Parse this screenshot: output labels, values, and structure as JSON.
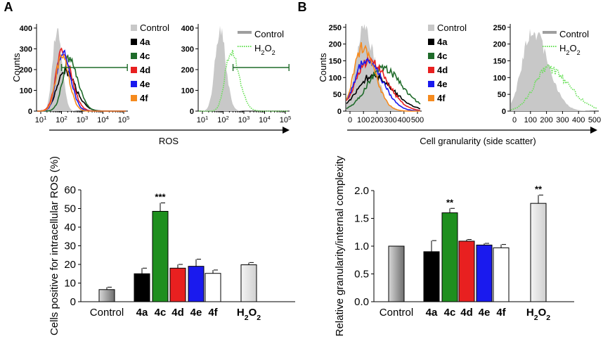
{
  "panels": [
    {
      "label": "A"
    },
    {
      "label": "B"
    }
  ],
  "colors": {
    "control_fill": "#c8c8c8",
    "control_line": "#9e9e9e",
    "4a": "#000000",
    "4c": "#1f6b2a",
    "4d": "#e82020",
    "4e": "#1a1aee",
    "4f": "#f58a1e",
    "h2o2": "#66e055",
    "bar_4c": "#1e8f1e",
    "gate": "#1f6b2a"
  },
  "chart_data": [
    {
      "type": "histogram",
      "panel": "A",
      "plot": "ros-histogram-compounds",
      "ylabel": "Counts",
      "xlabel": "ROS",
      "x_scale": "log",
      "x_ticks": [
        "10¹",
        "10²",
        "10³",
        "10⁴",
        "10⁵"
      ],
      "y_ticks": [
        0,
        100,
        200,
        300,
        400
      ],
      "ylim": [
        0,
        420
      ],
      "legend": [
        {
          "label": "Control",
          "color": "#c8c8c8"
        },
        {
          "label": "4a",
          "color": "#000000"
        },
        {
          "label": "4c",
          "color": "#1f6b2a"
        },
        {
          "label": "4d",
          "color": "#e82020"
        },
        {
          "label": "4e",
          "color": "#1a1aee"
        },
        {
          "label": "4f",
          "color": "#f58a1e"
        }
      ],
      "series": [
        {
          "name": "Control",
          "peak_x": 60,
          "peak_count": 400
        },
        {
          "name": "4a",
          "peak_x": 130,
          "peak_count": 195
        },
        {
          "name": "4c",
          "peak_x": 230,
          "peak_count": 255
        },
        {
          "name": "4d",
          "peak_x": 110,
          "peak_count": 290
        },
        {
          "name": "4e",
          "peak_x": 110,
          "peak_count": 290
        },
        {
          "name": "4f",
          "peak_x": 100,
          "peak_count": 270
        }
      ],
      "gate": {
        "from": 100,
        "to": 150000,
        "count": 210
      }
    },
    {
      "type": "histogram",
      "panel": "A",
      "plot": "ros-histogram-h2o2",
      "x_scale": "log",
      "x_ticks": [
        "10¹",
        "10²",
        "10³",
        "10⁴",
        "10⁵"
      ],
      "y_ticks": [
        0,
        100,
        200,
        300,
        400
      ],
      "ylim": [
        0,
        420
      ],
      "legend": [
        {
          "label": "Control",
          "color": "#9e9e9e"
        },
        {
          "label": "H₂O₂",
          "color": "#66e055"
        }
      ],
      "series": [
        {
          "name": "Control",
          "peak_x": 70,
          "peak_count": 390
        },
        {
          "name": "H₂O₂",
          "peak_x": 230,
          "peak_count": 285
        }
      ],
      "gate": {
        "from": 300,
        "to": 150000,
        "count": 210
      }
    },
    {
      "type": "bar",
      "panel": "A",
      "ylabel": "Cells positive for intracellular ROS (%)",
      "ylim": [
        0,
        60
      ],
      "y_ticks": [
        0,
        10,
        20,
        30,
        40,
        50,
        60
      ],
      "categories": [
        "Control",
        "4a",
        "4c",
        "4d",
        "4e",
        "4f",
        "H₂O₂"
      ],
      "values": [
        6.5,
        15,
        48.5,
        18,
        19,
        15.2,
        19.8
      ],
      "errors": [
        1.3,
        3,
        4.5,
        2,
        3.8,
        1.8,
        1.2
      ],
      "significance": [
        "",
        "",
        "***",
        "",
        "",
        "",
        ""
      ]
    },
    {
      "type": "histogram",
      "panel": "B",
      "plot": "granularity-histogram-compounds",
      "ylabel": "Counts",
      "xlabel": "Cell granularity (side scatter)",
      "x_ticks": [
        0,
        100,
        200,
        300,
        400,
        500
      ],
      "y_ticks": [
        0,
        50,
        100,
        150,
        200,
        250
      ],
      "ylim": [
        0,
        260
      ],
      "legend": [
        {
          "label": "Control",
          "color": "#c8c8c8"
        },
        {
          "label": "4a",
          "color": "#000000"
        },
        {
          "label": "4c",
          "color": "#1f6b2a"
        },
        {
          "label": "4d",
          "color": "#e82020"
        },
        {
          "label": "4e",
          "color": "#1a1aee"
        },
        {
          "label": "4f",
          "color": "#f58a1e"
        }
      ],
      "series": [
        {
          "name": "Control",
          "peak_x": 100,
          "peak_count": 240
        },
        {
          "name": "4a",
          "peak_x": 160,
          "peak_count": 105
        },
        {
          "name": "4c",
          "peak_x": 240,
          "peak_count": 125
        },
        {
          "name": "4d",
          "peak_x": 140,
          "peak_count": 150
        },
        {
          "name": "4e",
          "peak_x": 120,
          "peak_count": 155
        },
        {
          "name": "4f",
          "peak_x": 90,
          "peak_count": 190
        }
      ]
    },
    {
      "type": "histogram",
      "panel": "B",
      "plot": "granularity-histogram-h2o2",
      "x_ticks": [
        0,
        100,
        200,
        300,
        400,
        500
      ],
      "y_ticks": [
        0,
        50,
        100,
        150,
        200,
        250
      ],
      "ylim": [
        0,
        260
      ],
      "legend": [
        {
          "label": "Control",
          "color": "#9e9e9e"
        },
        {
          "label": "H₂O₂",
          "color": "#66e055"
        }
      ],
      "series": [
        {
          "name": "Control",
          "peak_x": 110,
          "peak_count": 240
        },
        {
          "name": "H₂O₂",
          "peak_x": 210,
          "peak_count": 125
        }
      ]
    },
    {
      "type": "bar",
      "panel": "B",
      "ylabel": "Relative granularity/internal complexity",
      "ylim": [
        0,
        2.0
      ],
      "y_ticks": [
        "0.0",
        "0.5",
        "1.0",
        "1.5",
        "2.0"
      ],
      "categories": [
        "Control",
        "4a",
        "4c",
        "4d",
        "4e",
        "4f",
        "H₂O₂"
      ],
      "values": [
        1.0,
        0.9,
        1.6,
        1.09,
        1.02,
        0.97,
        1.77
      ],
      "errors": [
        0,
        0.2,
        0.08,
        0.03,
        0.03,
        0.06,
        0.15
      ],
      "significance": [
        "",
        "",
        "**",
        "",
        "",
        "",
        "**"
      ]
    }
  ]
}
